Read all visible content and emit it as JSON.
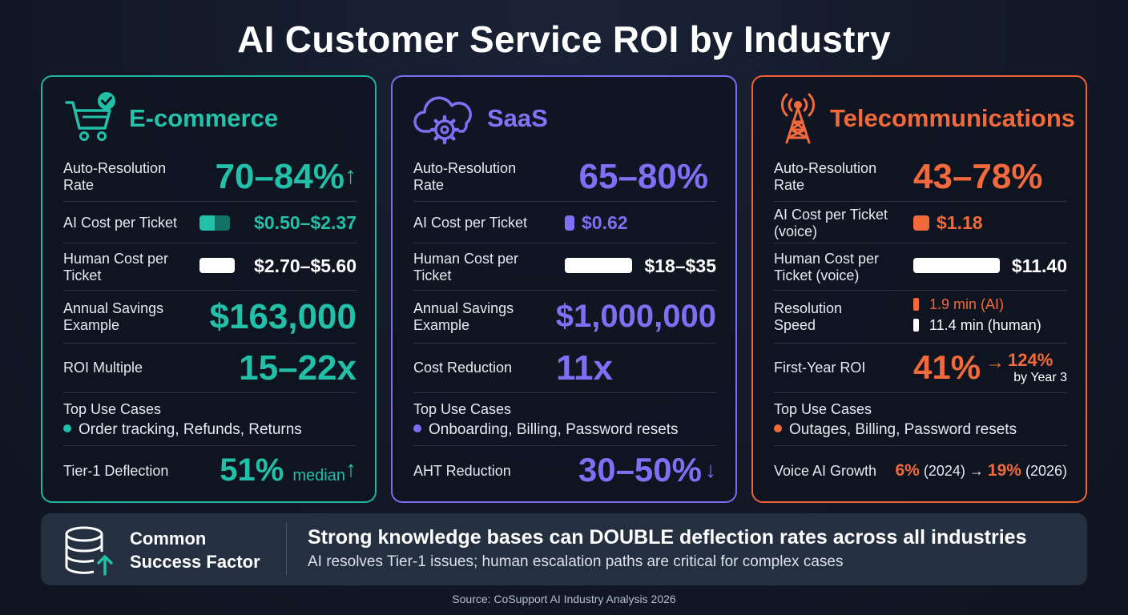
{
  "title": "AI Customer Service ROI by Industry",
  "colors": {
    "ecommerce": "#22c0a8",
    "saas": "#7f6ff5",
    "telecom": "#f26a3c"
  },
  "ecommerce": {
    "name": "E-commerce",
    "icon": "cart-check-icon",
    "auto_label": "Auto-Resolution Rate",
    "auto_value": "70–84%",
    "auto_arrow": "↑",
    "ai_cost_label": "AI Cost per Ticket",
    "ai_cost_value": "$0.50–$2.37",
    "human_cost_label": "Human Cost per Ticket",
    "human_cost_value": "$2.70–$5.60",
    "savings_label": "Annual Savings Example",
    "savings_value": "$163,000",
    "roi_label": "ROI Multiple",
    "roi_value": "15–22x",
    "use_cases_label": "Top Use Cases",
    "use_cases": "Order tracking, Refunds, Returns",
    "deflection_label": "Tier-1 Deflection",
    "deflection_value": "51%",
    "deflection_suffix": "median",
    "deflection_arrow": "↑"
  },
  "saas": {
    "name": "SaaS",
    "icon": "cloud-gear-icon",
    "auto_label": "Auto-Resolution Rate",
    "auto_value": "65–80%",
    "ai_cost_label": "AI Cost per Ticket",
    "ai_cost_value": "$0.62",
    "human_cost_label": "Human Cost per Ticket",
    "human_cost_value": "$18–$35",
    "savings_label": "Annual Savings Example",
    "savings_value": "$1,000,000",
    "reduction_label": "Cost Reduction",
    "reduction_value": "11x",
    "use_cases_label": "Top Use Cases",
    "use_cases": "Onboarding, Billing, Password resets",
    "aht_label": "AHT Reduction",
    "aht_value": "30–50%",
    "aht_arrow": "↓"
  },
  "telecom": {
    "name": "Telecommunications",
    "icon": "cell-tower-icon",
    "auto_label": "Auto-Resolution Rate",
    "auto_value": "43–78%",
    "ai_cost_label": "AI Cost per Ticket (voice)",
    "ai_cost_value": "$1.18",
    "human_cost_label": "Human Cost per Ticket (voice)",
    "human_cost_value": "$11.40",
    "speed_label": "Resolution Speed",
    "speed_ai": "1.9 min (AI)",
    "speed_human": "11.4 min (human)",
    "roi_label": "First-Year ROI",
    "roi_value": "41%",
    "roi_arrow": "→",
    "roi_year3": "124%",
    "roi_year3_label": "by Year 3",
    "use_cases_label": "Top Use Cases",
    "use_cases": "Outages, Billing, Password resets",
    "voice_label": "Voice AI Growth",
    "voice_2024_pct": "6%",
    "voice_2024_year": "(2024)",
    "voice_arrow": "→",
    "voice_2026_pct": "19%",
    "voice_2026_year": "(2026)"
  },
  "footer": {
    "icon": "database-arrow-icon",
    "label_line1": "Common",
    "label_line2": "Success Factor",
    "headline": "Strong knowledge bases can DOUBLE deflection rates across all industries",
    "subline": "AI resolves Tier-1 issues; human escalation paths are critical for complex cases"
  },
  "source": "Source: CoSupport AI Industry Analysis 2026"
}
